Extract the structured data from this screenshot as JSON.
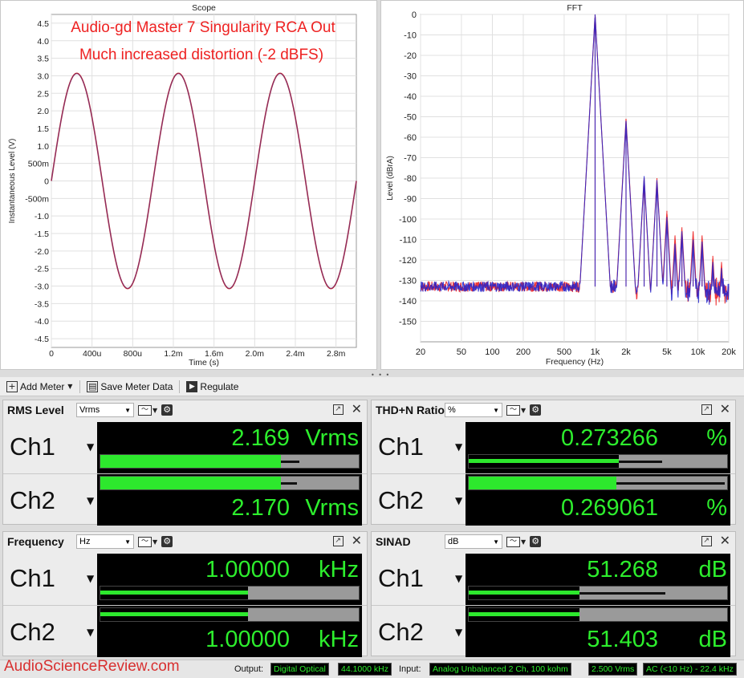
{
  "scope": {
    "title": "Scope",
    "annotation_line1": "Audio-gd Master 7 Singularity RCA Out",
    "annotation_line2": "Much increased distortion (-2 dBFS)"
  },
  "fft": {
    "title": "FFT"
  },
  "chart_data": [
    {
      "type": "line",
      "title": "Scope",
      "xlabel": "Time (s)",
      "ylabel": "Instantaneous Level (V)",
      "xlim": [
        0,
        0.003
      ],
      "ylim": [
        -4.75,
        4.75
      ],
      "x_ticks": [
        {
          "v": 0,
          "label": "0"
        },
        {
          "v": 0.0004,
          "label": "400u"
        },
        {
          "v": 0.0008,
          "label": "800u"
        },
        {
          "v": 0.0012,
          "label": "1.2m"
        },
        {
          "v": 0.0016,
          "label": "1.6m"
        },
        {
          "v": 0.002,
          "label": "2.0m"
        },
        {
          "v": 0.0024,
          "label": "2.4m"
        },
        {
          "v": 0.0028,
          "label": "2.8m"
        }
      ],
      "y_ticks": [
        {
          "v": 4.5,
          "label": "4.5"
        },
        {
          "v": 4.0,
          "label": "4.0"
        },
        {
          "v": 3.5,
          "label": "3.5"
        },
        {
          "v": 3.0,
          "label": "3.0"
        },
        {
          "v": 2.5,
          "label": "2.5"
        },
        {
          "v": 2.0,
          "label": "2.0"
        },
        {
          "v": 1.5,
          "label": "1.5"
        },
        {
          "v": 1.0,
          "label": "1.0"
        },
        {
          "v": 0.5,
          "label": "500m"
        },
        {
          "v": 0,
          "label": "0"
        },
        {
          "v": -0.5,
          "label": "-500m"
        },
        {
          "v": -1.0,
          "label": "-1.0"
        },
        {
          "v": -1.5,
          "label": "-1.5"
        },
        {
          "v": -2.0,
          "label": "-2.0"
        },
        {
          "v": -2.5,
          "label": "-2.5"
        },
        {
          "v": -3.0,
          "label": "-3.0"
        },
        {
          "v": -3.5,
          "label": "-3.5"
        },
        {
          "v": -4.0,
          "label": "-4.0"
        },
        {
          "v": -4.5,
          "label": "-4.5"
        }
      ],
      "grid": true,
      "series": [
        {
          "color": "#c0242a",
          "kind": "sine",
          "amplitude": 3.07,
          "frequency_hz": 1000,
          "phase_deg": 0
        },
        {
          "color": "#3a3ab0",
          "kind": "sine",
          "amplitude": 3.06,
          "frequency_hz": 1000,
          "phase_deg": 0
        }
      ]
    },
    {
      "type": "line",
      "title": "FFT",
      "xlabel": "Frequency (Hz)",
      "ylabel": "Level (dBrA)",
      "x_scale": "log",
      "xlim": [
        20,
        20000
      ],
      "ylim": [
        -160,
        0
      ],
      "x_ticks": [
        {
          "v": 20,
          "label": "20"
        },
        {
          "v": 50,
          "label": "50"
        },
        {
          "v": 100,
          "label": "100"
        },
        {
          "v": 200,
          "label": "200"
        },
        {
          "v": 500,
          "label": "500"
        },
        {
          "v": 1000,
          "label": "1k"
        },
        {
          "v": 2000,
          "label": "2k"
        },
        {
          "v": 5000,
          "label": "5k"
        },
        {
          "v": 10000,
          "label": "10k"
        },
        {
          "v": 20000,
          "label": "20k"
        }
      ],
      "y_ticks": [
        {
          "v": 0,
          "label": "0"
        },
        {
          "v": -10,
          "label": "-10"
        },
        {
          "v": -20,
          "label": "-20"
        },
        {
          "v": -30,
          "label": "-30"
        },
        {
          "v": -40,
          "label": "-40"
        },
        {
          "v": -50,
          "label": "-50"
        },
        {
          "v": -60,
          "label": "-60"
        },
        {
          "v": -70,
          "label": "-70"
        },
        {
          "v": -80,
          "label": "-80"
        },
        {
          "v": -90,
          "label": "-90"
        },
        {
          "v": -100,
          "label": "-100"
        },
        {
          "v": -110,
          "label": "-110"
        },
        {
          "v": -120,
          "label": "-120"
        },
        {
          "v": -130,
          "label": "-130"
        },
        {
          "v": -140,
          "label": "-140"
        },
        {
          "v": -150,
          "label": "-150"
        }
      ],
      "grid": true,
      "noise_floor_db": -133,
      "series": [
        {
          "color": "#ee2222",
          "peaks": [
            {
              "hz": 1000,
              "db": 0
            },
            {
              "hz": 2000,
              "db": -51
            },
            {
              "hz": 3000,
              "db": -80
            },
            {
              "hz": 4000,
              "db": -80
            },
            {
              "hz": 5000,
              "db": -96
            },
            {
              "hz": 6000,
              "db": -108
            },
            {
              "hz": 7000,
              "db": -104
            },
            {
              "hz": 9000,
              "db": -106
            },
            {
              "hz": 11000,
              "db": -108
            },
            {
              "hz": 14000,
              "db": -118
            },
            {
              "hz": 17000,
              "db": -121
            }
          ]
        },
        {
          "color": "#2222cc",
          "peaks": [
            {
              "hz": 1000,
              "db": 0
            },
            {
              "hz": 2000,
              "db": -52
            },
            {
              "hz": 3000,
              "db": -79
            },
            {
              "hz": 4000,
              "db": -81
            },
            {
              "hz": 5000,
              "db": -99
            },
            {
              "hz": 6000,
              "db": -112
            },
            {
              "hz": 7000,
              "db": -106
            },
            {
              "hz": 9000,
              "db": -110
            },
            {
              "hz": 11000,
              "db": -111
            },
            {
              "hz": 14000,
              "db": -121
            },
            {
              "hz": 17000,
              "db": -124
            }
          ]
        }
      ]
    }
  ],
  "toolbar": {
    "add_meter": "Add Meter",
    "save_meter_data": "Save Meter Data",
    "regulate": "Regulate"
  },
  "meters": {
    "rms": {
      "title": "RMS Level",
      "unit_select": "Vrms",
      "ch1": {
        "label": "Ch1",
        "value": "2.169",
        "unit": "Vrms",
        "bar": 0.7,
        "peak": 0.77,
        "lite": true
      },
      "ch2": {
        "label": "Ch2",
        "value": "2.170",
        "unit": "Vrms",
        "bar": 0.7,
        "peak": 0.76,
        "lite": true
      }
    },
    "thdn": {
      "title": "THD+N Ratio",
      "unit_select": "%",
      "ch1": {
        "label": "Ch1",
        "value": "0.273266",
        "unit": "%",
        "bar": 0.58,
        "peak": 0.75,
        "lite": false
      },
      "ch2": {
        "label": "Ch2",
        "value": "0.269061",
        "unit": "%",
        "bar": 0.57,
        "peak": 0.99,
        "lite": true
      }
    },
    "freq": {
      "title": "Frequency",
      "unit_select": "Hz",
      "ch1": {
        "label": "Ch1",
        "value": "1.00000",
        "unit": "kHz",
        "bar": 0.57,
        "peak": 0.57,
        "lite": false
      },
      "ch2": {
        "label": "Ch2",
        "value": "1.00000",
        "unit": "kHz",
        "bar": 0.57,
        "peak": 0.57,
        "lite": false
      }
    },
    "sinad": {
      "title": "SINAD",
      "unit_select": "dB",
      "ch1": {
        "label": "Ch1",
        "value": "51.268",
        "unit": "dB",
        "bar": 0.43,
        "peak": 0.76,
        "lite": false
      },
      "ch2": {
        "label": "Ch2",
        "value": "51.403",
        "unit": "dB",
        "bar": 0.43,
        "peak": 0.43,
        "lite": false
      }
    }
  },
  "status": {
    "watermark": "AudioScienceReview.com",
    "output_label": "Output:",
    "output_device": "Digital Optical",
    "output_rate": "44.1000 kHz",
    "input_label": "Input:",
    "input_device": "Analog Unbalanced 2 Ch, 100 kohm",
    "input_range": "2.500 Vrms",
    "input_filter": "AC (<10 Hz) - 22.4 kHz"
  },
  "icons": {
    "add": "plus-icon",
    "save": "save-icon",
    "regulate": "play-icon",
    "graph": "graph-icon",
    "gear": "gear-icon",
    "popout": "popout-icon",
    "close": "close-icon"
  }
}
